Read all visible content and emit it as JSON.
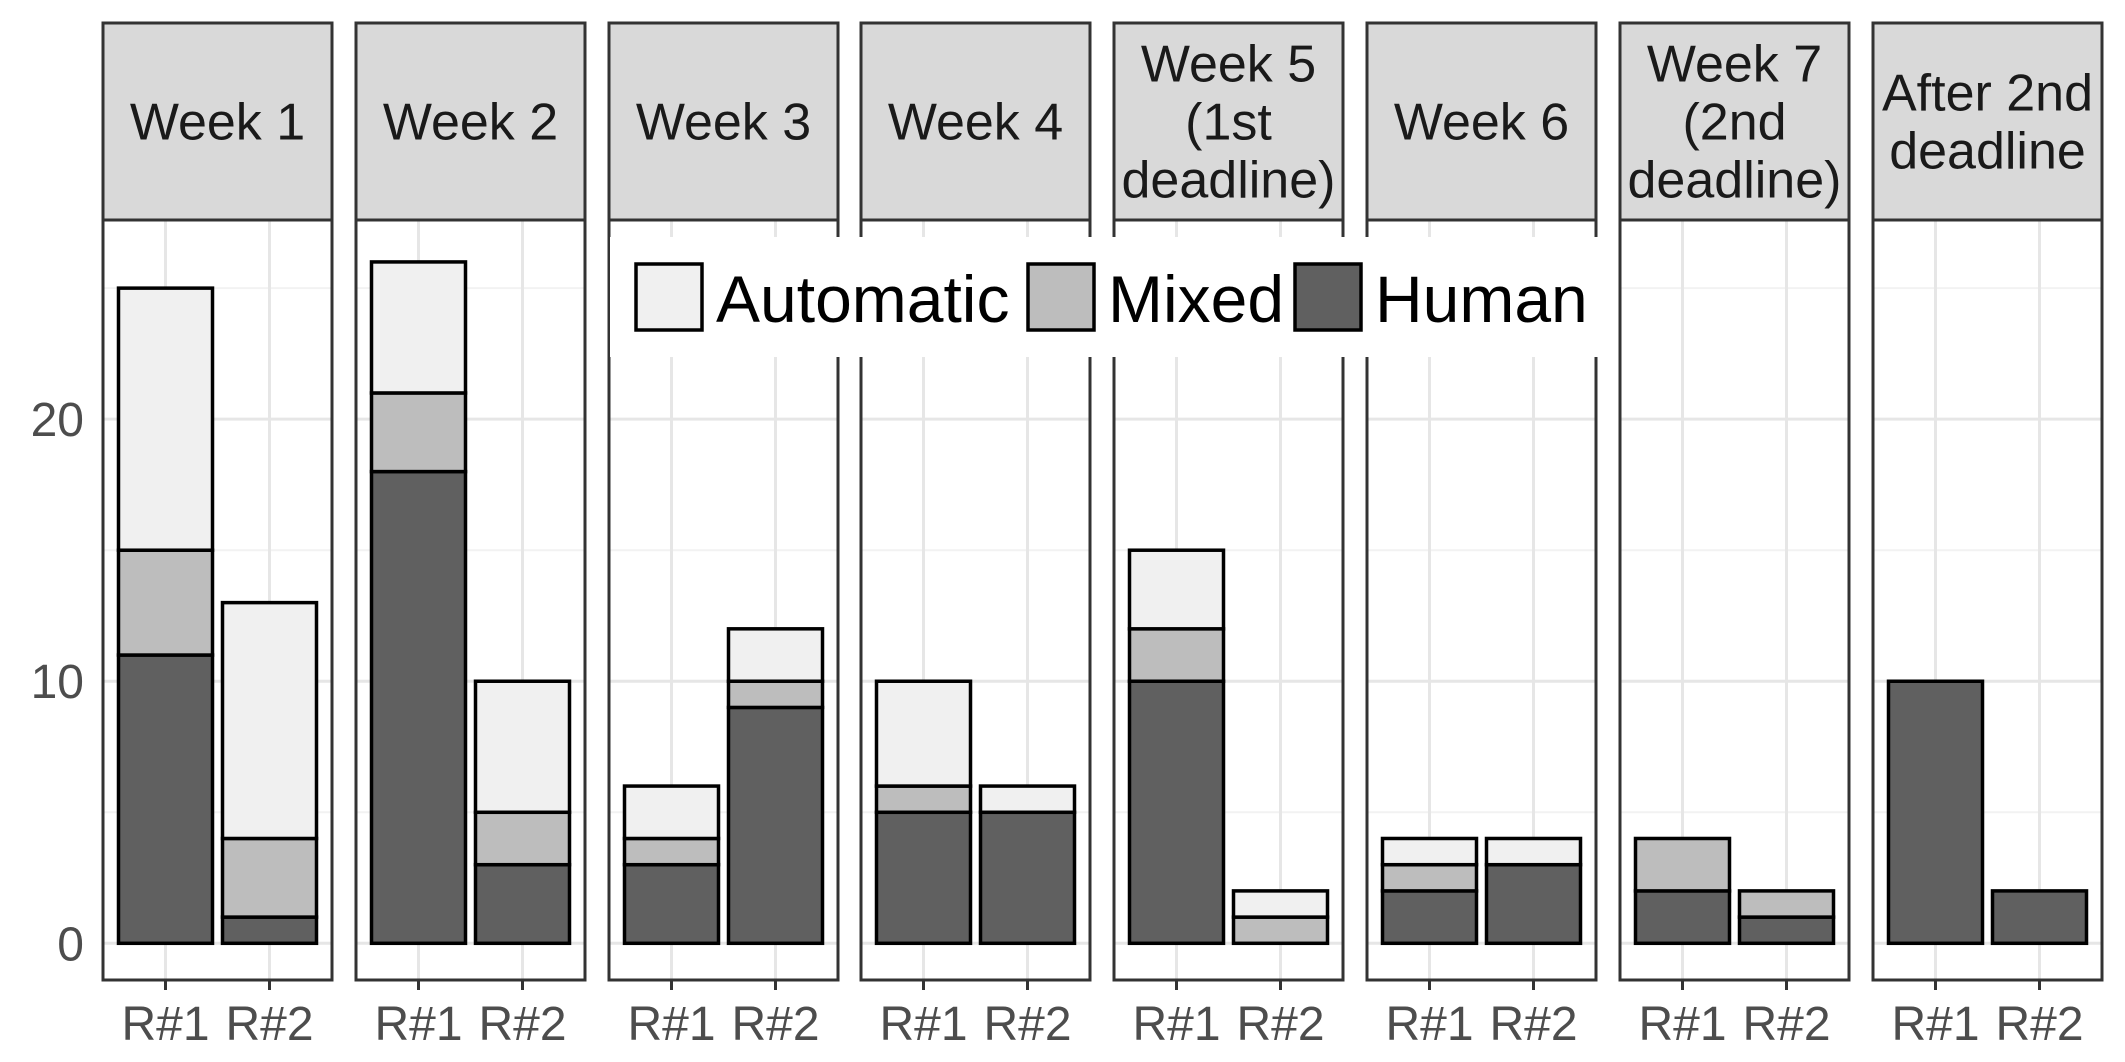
{
  "chart_data": {
    "type": "bar",
    "stacked": true,
    "facets": [
      {
        "label": "Week 1",
        "categories": [
          "R#1",
          "R#2"
        ],
        "Human": [
          11,
          1
        ],
        "Mixed": [
          4,
          3
        ],
        "Automatic": [
          10,
          9
        ]
      },
      {
        "label": "Week 2",
        "categories": [
          "R#1",
          "R#2"
        ],
        "Human": [
          18,
          3
        ],
        "Mixed": [
          3,
          2
        ],
        "Automatic": [
          5,
          5
        ]
      },
      {
        "label": "Week 3",
        "categories": [
          "R#1",
          "R#2"
        ],
        "Human": [
          3,
          9
        ],
        "Mixed": [
          1,
          1
        ],
        "Automatic": [
          2,
          2
        ]
      },
      {
        "label": "Week 4",
        "categories": [
          "R#1",
          "R#2"
        ],
        "Human": [
          5,
          5
        ],
        "Mixed": [
          1,
          0
        ],
        "Automatic": [
          4,
          1
        ]
      },
      {
        "label": "Week 5 (1st deadline)",
        "categories": [
          "R#1",
          "R#2"
        ],
        "Human": [
          10,
          0
        ],
        "Mixed": [
          2,
          1
        ],
        "Automatic": [
          3,
          1
        ]
      },
      {
        "label": "Week 6",
        "categories": [
          "R#1",
          "R#2"
        ],
        "Human": [
          2,
          3
        ],
        "Mixed": [
          1,
          0
        ],
        "Automatic": [
          1,
          1
        ]
      },
      {
        "label": "Week 7 (2nd deadline)",
        "categories": [
          "R#1",
          "R#2"
        ],
        "Human": [
          2,
          1
        ],
        "Mixed": [
          2,
          1
        ],
        "Automatic": [
          0,
          0
        ]
      },
      {
        "label": "After 2nd deadline",
        "categories": [
          "R#1",
          "R#2"
        ],
        "Human": [
          10,
          2
        ],
        "Mixed": [
          0,
          0
        ],
        "Automatic": [
          0,
          0
        ]
      }
    ],
    "strip_lines": [
      [
        "Week 1"
      ],
      [
        "Week 2"
      ],
      [
        "Week 3"
      ],
      [
        "Week 4"
      ],
      [
        "Week 5",
        "(1st",
        "deadline)"
      ],
      [
        "Week 6"
      ],
      [
        "Week 7",
        "(2nd",
        "deadline)"
      ],
      [
        "After 2nd",
        "deadline"
      ]
    ],
    "series": [
      {
        "name": "Human",
        "color": "#606060"
      },
      {
        "name": "Mixed",
        "color": "#bdbdbd"
      },
      {
        "name": "Automatic",
        "color": "#f0f0f0"
      }
    ],
    "legend_order": [
      "Automatic",
      "Mixed",
      "Human"
    ],
    "legend_position": "top-center",
    "y_ticks": [
      0,
      10,
      20
    ],
    "ylim": [
      -1.4,
      27.6
    ],
    "grid": true
  }
}
